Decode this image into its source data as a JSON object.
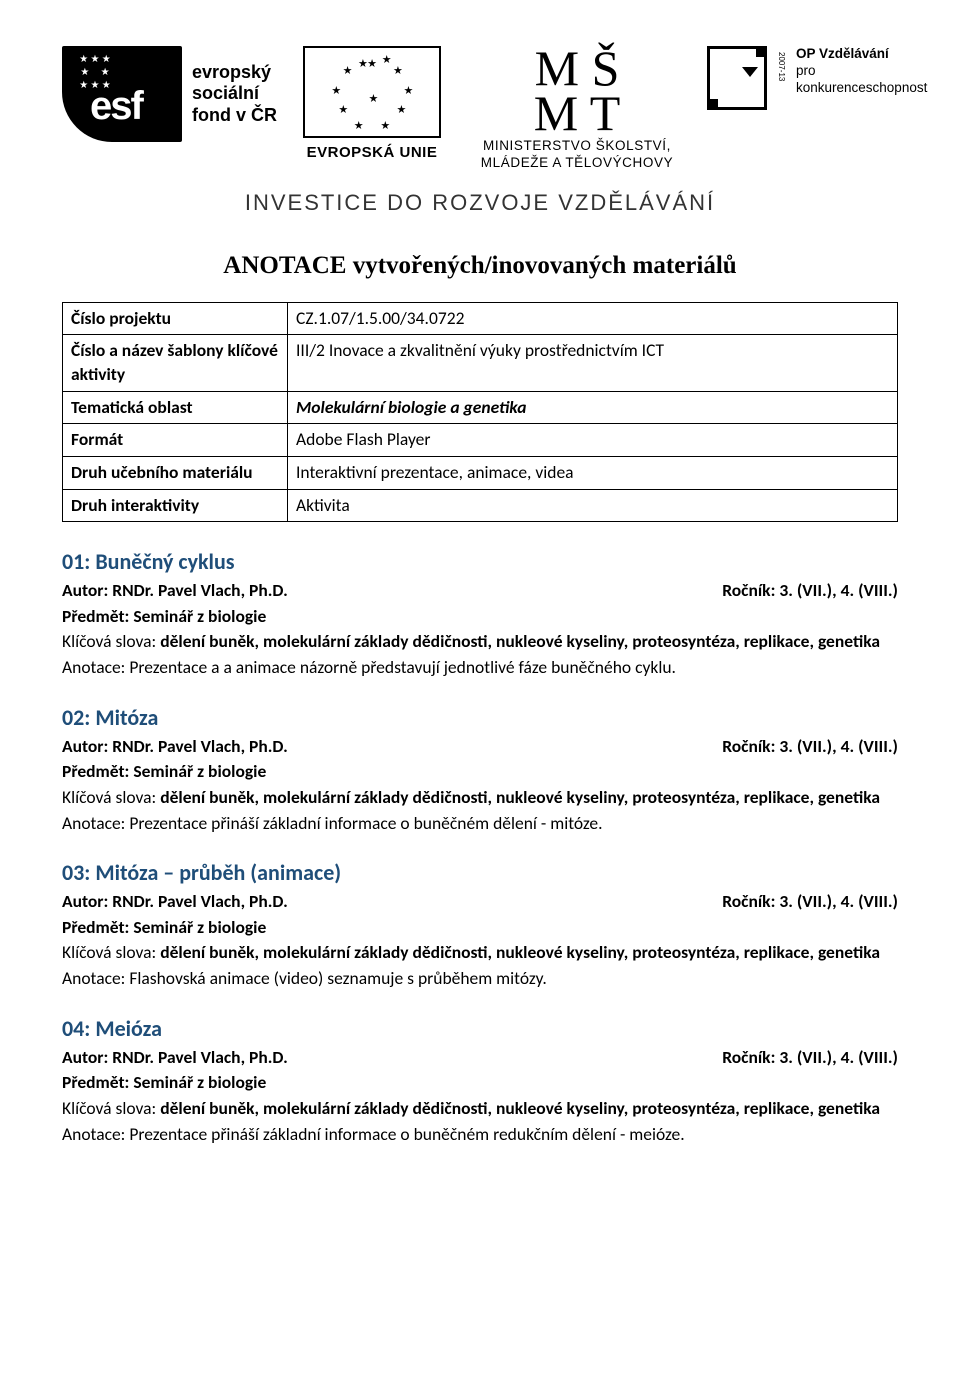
{
  "header": {
    "esf_text": "evropský\nsociální\nfond v ČR",
    "eu_label": "EVROPSKÁ UNIE",
    "msmt_line1": "MINISTERSTVO ŠKOLSTVÍ,",
    "msmt_line2": "MLÁDEŽE A TĚLOVÝCHOVY",
    "op_title": "OP Vzdělávání",
    "op_sub": "pro konkurenceschopnost",
    "op_year": "2007-13",
    "tagline": "INVESTICE DO ROZVOJE VZDĚLÁVÁNÍ"
  },
  "page_title": "ANOTACE vytvořených/inovovaných materiálů",
  "meta": {
    "labels": {
      "project_no": "Číslo projektu",
      "template": "Číslo a název šablony klíčové aktivity",
      "area": "Tematická oblast",
      "format": "Formát",
      "mat_type": "Druh učebního materiálu",
      "interact": "Druh interaktivity"
    },
    "values": {
      "project_no": "CZ.1.07/1.5.00/34.0722",
      "template": "III/2 Inovace a zkvalitnění výuky prostřednictvím ICT",
      "area": "Molekulární biologie a genetika",
      "format": "Adobe Flash Player",
      "mat_type": "Interaktivní prezentace, animace, videa",
      "interact": "Aktivita"
    }
  },
  "common": {
    "author_label": "Autor: ",
    "author": "RNDr. Pavel Vlach, Ph.D.",
    "year_label": "Ročník: ",
    "year": "3. (VII.), 4. (VIII.)",
    "subject_label": "Předmět: ",
    "subject": "Seminář z biologie",
    "keywords_label": "Klíčová slova: ",
    "keywords": "dělení buněk, molekulární základy dědičnosti, nukleové kyseliny, proteosyntéza, replikace, genetika",
    "annotation_label": "Anotace: "
  },
  "sections": [
    {
      "title": "01: Buněčný cyklus",
      "annotation": "Prezentace a a animace názorně představují jednotlivé fáze buněčného cyklu."
    },
    {
      "title": "02: Mitóza",
      "annotation": "Prezentace přináší základní informace o buněčném dělení - mitóze."
    },
    {
      "title": "03: Mitóza – průběh (animace)",
      "annotation": "Flashovská animace (video) seznamuje s průběhem mitózy."
    },
    {
      "title": "04: Meióza",
      "annotation": "Prezentace přináší základní informace o buněčném redukčním dělení - meióze."
    }
  ],
  "colors": {
    "heading": "#1f4e79",
    "text": "#000000",
    "border": "#000000",
    "background": "#ffffff"
  }
}
